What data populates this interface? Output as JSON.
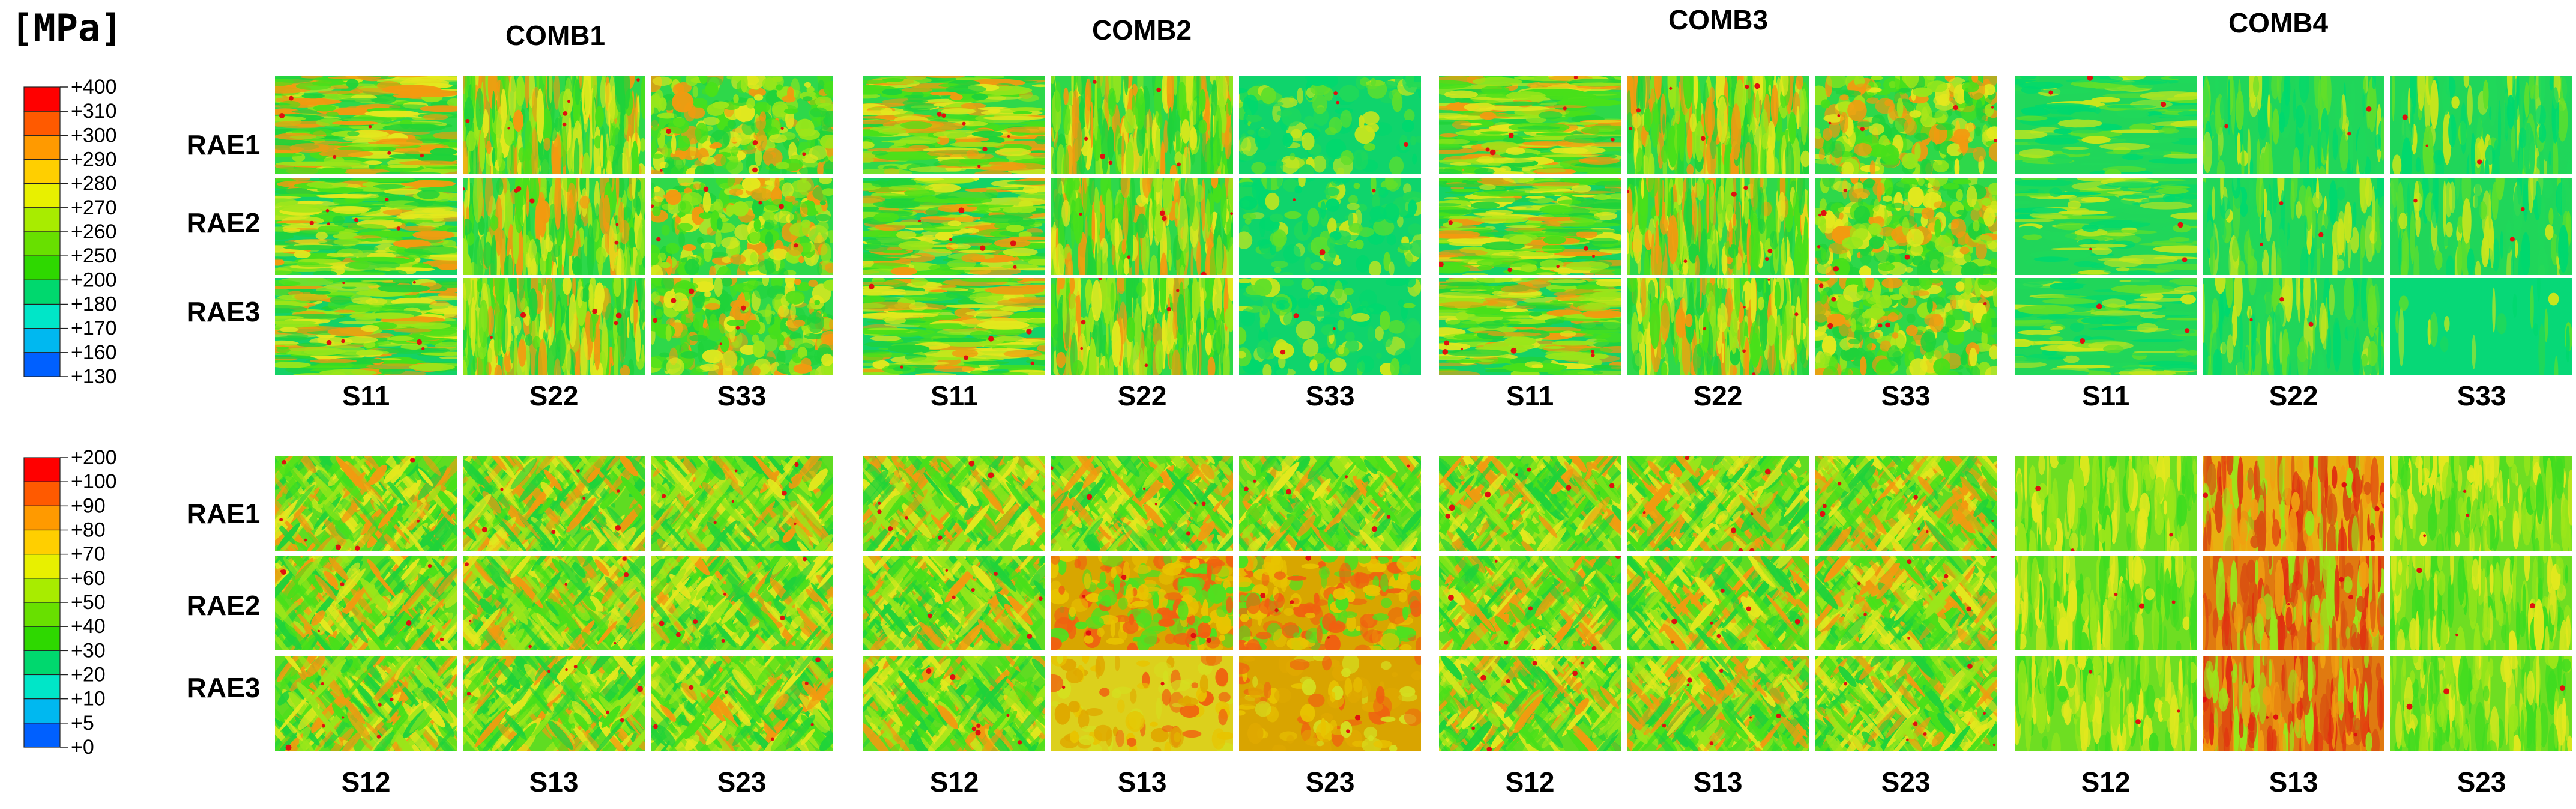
{
  "unit_label": "[MPa]",
  "top_legend": {
    "ticks": [
      "+400",
      "+310",
      "+300",
      "+290",
      "+280",
      "+270",
      "+260",
      "+250",
      "+200",
      "+180",
      "+170",
      "+160",
      "+130"
    ],
    "colors": [
      "#ff0000",
      "#ff5a00",
      "#ff9a00",
      "#ffcf00",
      "#e8f000",
      "#a8ec00",
      "#68e000",
      "#2ed800",
      "#00d86e",
      "#00e6c8",
      "#00b8f0",
      "#0060ff",
      "#0000ff"
    ]
  },
  "bottom_legend": {
    "ticks": [
      "+200",
      "+100",
      "+90",
      "+80",
      "+70",
      "+60",
      "+50",
      "+40",
      "+30",
      "+20",
      "+10",
      "+5",
      "+0"
    ],
    "colors": [
      "#ff0000",
      "#ff5a00",
      "#ff9a00",
      "#ffcf00",
      "#e8f000",
      "#a8ec00",
      "#68e000",
      "#2ed800",
      "#00d86e",
      "#00e6c8",
      "#00b8f0",
      "#0060ff",
      "#0000ff"
    ]
  },
  "combinations": [
    "COMB1",
    "COMB2",
    "COMB3",
    "COMB4"
  ],
  "rows": [
    "RAE1",
    "RAE2",
    "RAE3"
  ],
  "top_components": [
    "S11",
    "S22",
    "S33"
  ],
  "bottom_components": [
    "S12",
    "S13",
    "S23"
  ]
}
